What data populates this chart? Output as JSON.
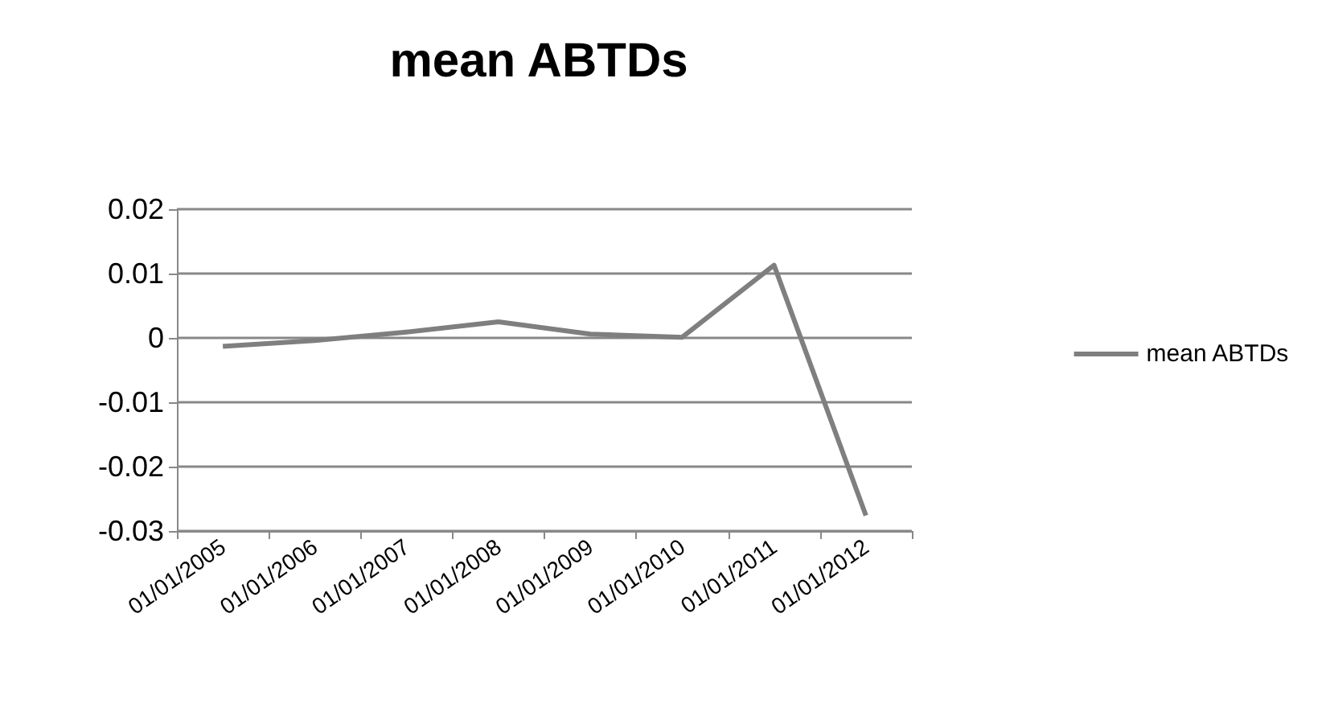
{
  "chart_data": {
    "type": "line",
    "title": "mean ABTDs",
    "categories": [
      "01/01/2005",
      "01/01/2006",
      "01/01/2007",
      "01/01/2008",
      "01/01/2009",
      "01/01/2010",
      "01/01/2011",
      "01/01/2012"
    ],
    "series": [
      {
        "name": "mean ABTDs",
        "color": "#7f7f7f",
        "values": [
          -0.0013,
          -0.0004,
          0.0009,
          0.0025,
          0.0006,
          0.0001,
          0.0113,
          -0.0276
        ]
      }
    ],
    "ylim": [
      -0.03,
      0.02
    ],
    "yticks": [
      -0.03,
      -0.02,
      -0.01,
      0,
      0.01,
      0.02
    ],
    "grid": "y",
    "legend": "right",
    "marker": "none"
  }
}
